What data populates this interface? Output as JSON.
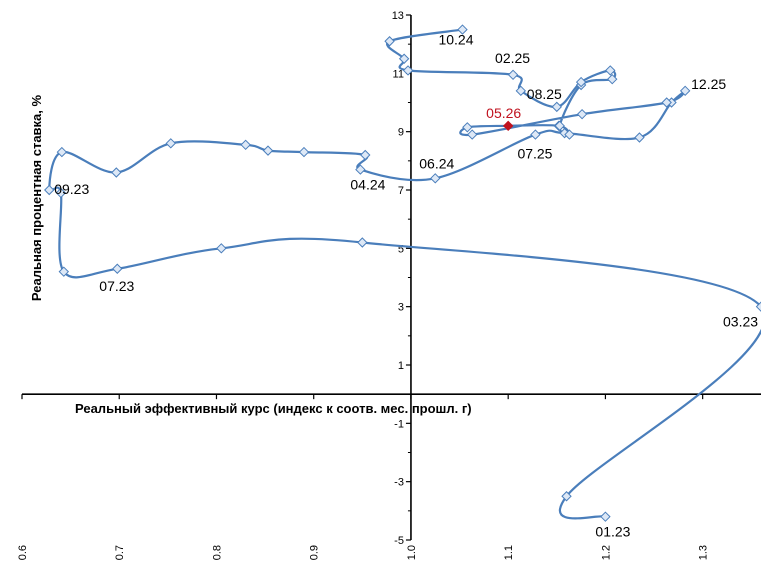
{
  "chart_data": {
    "type": "scatter",
    "xlabel": "Реальный эффективный курс (индекс к соотв. мес. прошл. г)",
    "ylabel": "Реальная процентная ставка, %",
    "xlim": [
      0.6,
      1.36
    ],
    "ylim": [
      -5,
      13
    ],
    "xticks": [
      "0.6",
      "0.7",
      "0.8",
      "0.9",
      "1.0",
      "1.1",
      "1.2",
      "1.3"
    ],
    "yticks": [
      "-5",
      "-3",
      "-1",
      "1",
      "3",
      "5",
      "7",
      "9",
      "11",
      "13"
    ],
    "grid": false,
    "colors": {
      "line": "#4a7ebb",
      "marker": "#4a7ebb",
      "highlight": "#c0121f",
      "axis": "#000000"
    },
    "series": [
      {
        "points": [
          {
            "x": 1.2,
            "y": -4.2,
            "label": "01.23"
          },
          {
            "x": 1.16,
            "y": -3.5
          },
          {
            "x": 1.36,
            "y": 3.0,
            "label": "03.23"
          },
          {
            "x": 0.95,
            "y": 5.2
          },
          {
            "x": 0.805,
            "y": 5.0
          },
          {
            "x": 0.698,
            "y": 4.3,
            "label": "07.23"
          },
          {
            "x": 0.643,
            "y": 4.2
          },
          {
            "x": 0.64,
            "y": 6.9
          },
          {
            "x": 0.628,
            "y": 7.0,
            "label": "09.23"
          },
          {
            "x": 0.641,
            "y": 8.3
          },
          {
            "x": 0.697,
            "y": 7.6
          },
          {
            "x": 0.753,
            "y": 8.6
          },
          {
            "x": 0.83,
            "y": 8.55
          },
          {
            "x": 0.853,
            "y": 8.35
          },
          {
            "x": 0.89,
            "y": 8.3
          },
          {
            "x": 0.953,
            "y": 8.2
          },
          {
            "x": 0.948,
            "y": 7.7,
            "label": "04.24"
          },
          {
            "x": 1.025,
            "y": 7.4,
            "label": "06.24"
          },
          {
            "x": 1.128,
            "y": 8.9
          },
          {
            "x": 1.158,
            "y": 8.95
          },
          {
            "x": 1.235,
            "y": 8.8
          },
          {
            "x": 1.268,
            "y": 10.0
          },
          {
            "x": 1.282,
            "y": 10.4,
            "label": "12.25"
          },
          {
            "x": 1.263,
            "y": 10.0
          },
          {
            "x": 1.176,
            "y": 9.6
          },
          {
            "x": 1.063,
            "y": 8.9
          },
          {
            "x": 1.058,
            "y": 9.15
          },
          {
            "x": 1.1,
            "y": 9.2,
            "label": "05.26",
            "highlight": true
          },
          {
            "x": 1.152,
            "y": 9.2
          },
          {
            "x": 1.163,
            "y": 8.9,
            "label": "07.25"
          },
          {
            "x": 1.153,
            "y": 9.2
          },
          {
            "x": 1.175,
            "y": 10.6
          },
          {
            "x": 1.207,
            "y": 10.8
          },
          {
            "x": 1.205,
            "y": 11.1
          },
          {
            "x": 1.175,
            "y": 10.7
          },
          {
            "x": 1.15,
            "y": 9.85,
            "label": "08.25"
          },
          {
            "x": 1.113,
            "y": 10.4
          },
          {
            "x": 1.105,
            "y": 10.95,
            "label": "02.25"
          },
          {
            "x": 0.997,
            "y": 11.1
          },
          {
            "x": 0.993,
            "y": 11.5
          },
          {
            "x": 0.978,
            "y": 12.1
          },
          {
            "x": 1.053,
            "y": 12.5,
            "label": "10.24"
          }
        ]
      }
    ]
  }
}
